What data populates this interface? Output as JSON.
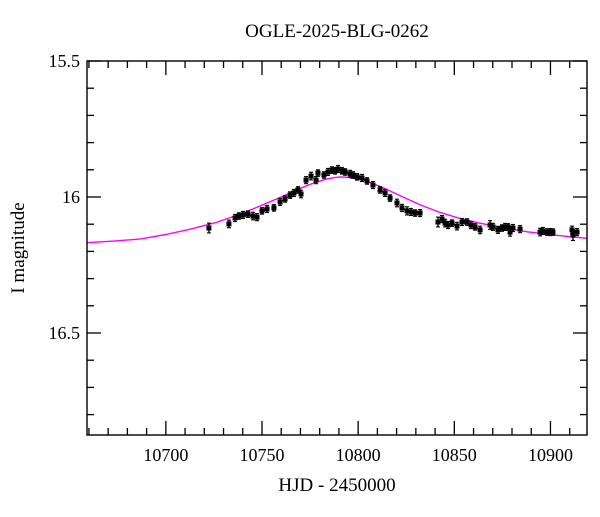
{
  "figure": {
    "background": "#ffffff"
  },
  "chart_data": {
    "type": "scatter",
    "title": "OGLE-2025-BLG-0262",
    "xlabel": "HJD - 2450000",
    "ylabel": "I magnitude",
    "xlim": [
      10659,
      10919
    ],
    "ylim": [
      15.5,
      16.875
    ],
    "y_axis_inverted_magnitude": true,
    "grid": false,
    "legend": null,
    "x_ticks": {
      "values": [
        10700,
        10750,
        10800,
        10850,
        10900
      ],
      "labels": [
        "10700",
        "10750",
        "10800",
        "10850",
        "10900"
      ],
      "minor_step": 10
    },
    "y_ticks": {
      "values": [
        15.5,
        16.0,
        16.5
      ],
      "labels": [
        "15.5",
        "16",
        "16.5"
      ],
      "minor_step": 0.1
    },
    "colors": {
      "model_curve": "#ff00ff",
      "data_points": "#000000",
      "axes": "#000000"
    },
    "model_curve": [
      [
        10659,
        16.168
      ],
      [
        10673,
        16.162
      ],
      [
        10687,
        16.154
      ],
      [
        10700,
        16.138
      ],
      [
        10713,
        16.118
      ],
      [
        10726,
        16.094
      ],
      [
        10739,
        16.062
      ],
      [
        10750,
        16.03
      ],
      [
        10760,
        16.0
      ],
      [
        10770,
        15.968
      ],
      [
        10777,
        15.948
      ],
      [
        10783,
        15.935
      ],
      [
        10788,
        15.928
      ],
      [
        10791,
        15.926
      ],
      [
        10795,
        15.928
      ],
      [
        10800,
        15.934
      ],
      [
        10806,
        15.946
      ],
      [
        10813,
        15.966
      ],
      [
        10822,
        15.996
      ],
      [
        10832,
        16.028
      ],
      [
        10842,
        16.055
      ],
      [
        10852,
        16.077
      ],
      [
        10863,
        16.096
      ],
      [
        10875,
        16.113
      ],
      [
        10888,
        16.128
      ],
      [
        10901,
        16.139
      ],
      [
        10910,
        16.146
      ],
      [
        10919,
        16.152
      ]
    ],
    "points": [
      [
        10722.4,
        16.114,
        0.018
      ],
      [
        10732.8,
        16.099,
        0.014
      ],
      [
        10736.0,
        16.077,
        0.013
      ],
      [
        10738.0,
        16.07,
        0.012
      ],
      [
        10740.1,
        16.066,
        0.013
      ],
      [
        10742.7,
        16.063,
        0.012
      ],
      [
        10745.3,
        16.07,
        0.014
      ],
      [
        10747.4,
        16.074,
        0.013
      ],
      [
        10750.0,
        16.051,
        0.012
      ],
      [
        10752.6,
        16.044,
        0.013
      ],
      [
        10756.2,
        16.04,
        0.012
      ],
      [
        10759.4,
        16.018,
        0.013
      ],
      [
        10762.0,
        16.007,
        0.012
      ],
      [
        10764.6,
        15.993,
        0.012
      ],
      [
        10766.6,
        15.985,
        0.013
      ],
      [
        10768.7,
        15.974,
        0.012
      ],
      [
        10770.3,
        15.989,
        0.014
      ],
      [
        10772.9,
        15.938,
        0.013
      ],
      [
        10775.5,
        15.923,
        0.014
      ],
      [
        10778.1,
        15.938,
        0.013
      ],
      [
        10779.1,
        15.912,
        0.012
      ],
      [
        10782.2,
        15.919,
        0.012
      ],
      [
        10784.3,
        15.908,
        0.013
      ],
      [
        10786.4,
        15.901,
        0.012
      ],
      [
        10788.0,
        15.904,
        0.012
      ],
      [
        10789.5,
        15.897,
        0.013
      ],
      [
        10791.6,
        15.904,
        0.012
      ],
      [
        10793.2,
        15.908,
        0.012
      ],
      [
        10795.8,
        15.915,
        0.013
      ],
      [
        10797.3,
        15.919,
        0.012
      ],
      [
        10799.4,
        15.926,
        0.012
      ],
      [
        10802.0,
        15.93,
        0.013
      ],
      [
        10804.6,
        15.941,
        0.012
      ],
      [
        10807.7,
        15.956,
        0.013
      ],
      [
        10811.4,
        15.974,
        0.012
      ],
      [
        10814.0,
        15.985,
        0.013
      ],
      [
        10816.6,
        16.004,
        0.012
      ],
      [
        10820.2,
        16.022,
        0.014
      ],
      [
        10822.8,
        16.04,
        0.013
      ],
      [
        10825.4,
        16.051,
        0.015
      ],
      [
        10827.5,
        16.055,
        0.013
      ],
      [
        10829.6,
        16.059,
        0.012
      ],
      [
        10832.2,
        16.059,
        0.013
      ],
      [
        10841.5,
        16.092,
        0.018
      ],
      [
        10843.6,
        16.081,
        0.013
      ],
      [
        10845.2,
        16.096,
        0.014
      ],
      [
        10846.7,
        16.103,
        0.013
      ],
      [
        10848.8,
        16.096,
        0.012
      ],
      [
        10851.4,
        16.107,
        0.014
      ],
      [
        10854.0,
        16.092,
        0.013
      ],
      [
        10856.6,
        16.092,
        0.012
      ],
      [
        10858.7,
        16.103,
        0.013
      ],
      [
        10860.8,
        16.11,
        0.012
      ],
      [
        10863.4,
        16.121,
        0.014
      ],
      [
        10868.6,
        16.103,
        0.016
      ],
      [
        10870.1,
        16.11,
        0.013
      ],
      [
        10872.7,
        16.121,
        0.013
      ],
      [
        10874.8,
        16.114,
        0.012
      ],
      [
        10876.4,
        16.11,
        0.013
      ],
      [
        10877.9,
        16.11,
        0.012
      ],
      [
        10879.0,
        16.129,
        0.015
      ],
      [
        10880.5,
        16.114,
        0.013
      ],
      [
        10884.2,
        16.118,
        0.013
      ],
      [
        10894.6,
        16.129,
        0.014
      ],
      [
        10896.1,
        16.125,
        0.013
      ],
      [
        10898.2,
        16.129,
        0.012
      ],
      [
        10899.8,
        16.129,
        0.013
      ],
      [
        10901.3,
        16.129,
        0.012
      ],
      [
        10911.2,
        16.121,
        0.014
      ],
      [
        10911.7,
        16.14,
        0.02
      ],
      [
        10913.8,
        16.129,
        0.013
      ]
    ]
  }
}
